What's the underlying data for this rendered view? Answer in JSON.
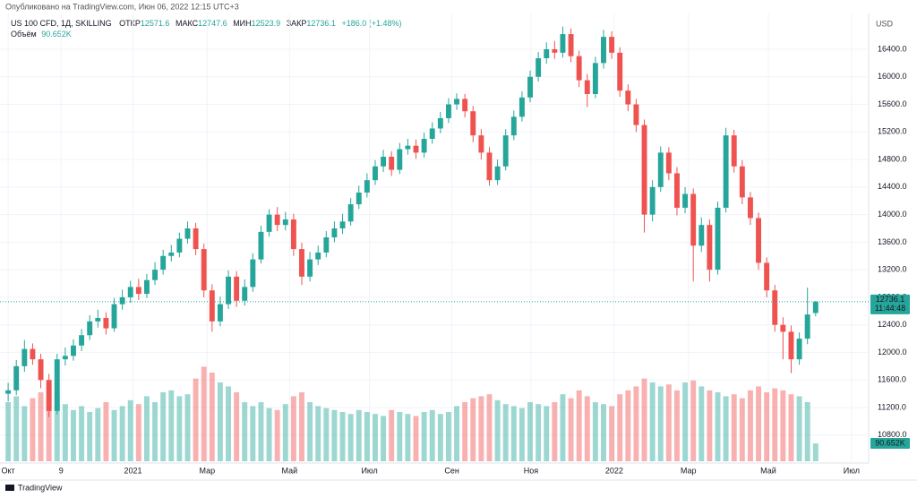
{
  "header": {
    "published": "Опубликовано на TradingView.com, Июн 06, 2022 12:15 UTC+3"
  },
  "footer": {
    "brand": "TradingView"
  },
  "chart_data": {
    "type": "candlestick",
    "title": "US 100 CFD, 1Д, SKILLING",
    "legend_labels": {
      "open": "ОТКР",
      "high": "МАКС",
      "low": "МИН",
      "close": "ЗАКР"
    },
    "change_label": "+186.0 (+1.48%)",
    "volume_name": "Объём",
    "volume_label": "90.652K",
    "timer": "11:44:48",
    "currency": "USD",
    "up_color": "#26a69a",
    "down_color": "#ef5350",
    "open": [
      11400,
      11450,
      11800,
      12050,
      11900,
      11600,
      11150,
      11900,
      11950,
      12100,
      12250,
      12450,
      12500,
      12350,
      12700,
      12800,
      12950,
      12850,
      13050,
      13200,
      13400,
      13450,
      13650,
      13800,
      13500,
      12900,
      12450,
      12700,
      13100,
      12750,
      12950,
      13350,
      13750,
      14000,
      13850,
      13930,
      13500,
      13100,
      13350,
      13450,
      13670,
      13800,
      13900,
      14150,
      14320,
      14500,
      14700,
      14840,
      14650,
      14950,
      15000,
      14900,
      15100,
      15250,
      15400,
      15600,
      15680,
      15500,
      15150,
      14900,
      14500,
      14700,
      15150,
      15420,
      15700,
      16000,
      16270,
      16400,
      16350,
      16620,
      16300,
      15950,
      15750,
      16200,
      16580,
      16350,
      15800,
      15600,
      15300,
      14000,
      14400,
      14900,
      14600,
      14100,
      14300,
      13550,
      13850,
      13200,
      14100,
      15150,
      14700,
      14250,
      13950,
      13300,
      12900,
      12400,
      12300,
      11900,
      12200,
      12571.6
    ],
    "high": [
      11560,
      11890,
      12180,
      12130,
      11980,
      11690,
      11980,
      12070,
      12190,
      12340,
      12540,
      12620,
      12580,
      12790,
      12910,
      13040,
      13070,
      13140,
      13310,
      13490,
      13560,
      13740,
      13900,
      13880,
      13580,
      12990,
      12810,
      13190,
      13180,
      13060,
      13440,
      13840,
      14080,
      14110,
      14040,
      14010,
      13590,
      13460,
      13550,
      13760,
      13900,
      14010,
      14240,
      14420,
      14600,
      14790,
      14940,
      14920,
      15040,
      15100,
      15090,
      15190,
      15340,
      15490,
      15690,
      15760,
      15750,
      15580,
      15240,
      14980,
      14800,
      15240,
      15510,
      15790,
      16090,
      16360,
      16500,
      16520,
      16730,
      16700,
      16380,
      16040,
      16290,
      16680,
      16660,
      16430,
      15890,
      15680,
      15380,
      14500,
      14990,
      14980,
      14690,
      14400,
      14380,
      13960,
      13930,
      14190,
      15260,
      15230,
      14790,
      14330,
      14030,
      13380,
      12980,
      12510,
      12390,
      12290,
      12940,
      12747.6
    ],
    "low": [
      11290,
      11380,
      11720,
      11820,
      11480,
      11060,
      11100,
      11810,
      11880,
      12020,
      12180,
      12360,
      12260,
      12300,
      12620,
      12720,
      12760,
      12790,
      12980,
      13130,
      13320,
      13380,
      13580,
      13410,
      12800,
      12300,
      12380,
      12630,
      12660,
      12680,
      12880,
      13290,
      13680,
      13760,
      13770,
      13400,
      12980,
      13030,
      13270,
      13380,
      13600,
      13720,
      13840,
      14080,
      14250,
      14430,
      14620,
      14560,
      14590,
      14870,
      14810,
      14830,
      15030,
      15180,
      15330,
      15520,
      15410,
      15050,
      14800,
      14420,
      14430,
      14640,
      15080,
      15350,
      15630,
      15930,
      16190,
      16260,
      16280,
      16210,
      15850,
      15560,
      15690,
      16120,
      16260,
      15710,
      15500,
      15200,
      13740,
      13900,
      14330,
      14500,
      13990,
      14020,
      13030,
      13460,
      13030,
      13130,
      14030,
      14610,
      14150,
      13850,
      13200,
      12800,
      12300,
      11900,
      11700,
      11820,
      12120,
      12523.9
    ],
    "close": [
      11450,
      11800,
      12050,
      11900,
      11600,
      11150,
      11900,
      11950,
      12100,
      12250,
      12450,
      12500,
      12350,
      12700,
      12800,
      12950,
      12850,
      13050,
      13200,
      13400,
      13450,
      13650,
      13800,
      13500,
      12900,
      12450,
      12700,
      13100,
      12750,
      12950,
      13350,
      13750,
      14000,
      13850,
      13930,
      13500,
      13100,
      13350,
      13450,
      13670,
      13800,
      13900,
      14150,
      14320,
      14500,
      14700,
      14840,
      14650,
      14950,
      15000,
      14900,
      15100,
      15250,
      15400,
      15600,
      15680,
      15500,
      15150,
      14900,
      14500,
      14700,
      15150,
      15420,
      15700,
      16000,
      16270,
      16400,
      16350,
      16620,
      16300,
      15950,
      15750,
      16200,
      16580,
      16350,
      15800,
      15600,
      15300,
      14000,
      14400,
      14900,
      14600,
      14100,
      14300,
      13550,
      13850,
      13200,
      14100,
      15150,
      14700,
      14250,
      13950,
      13300,
      12900,
      12400,
      12300,
      11900,
      12200,
      12550.1,
      12736.1
    ],
    "volume": [
      300,
      330,
      280,
      320,
      350,
      380,
      340,
      290,
      260,
      280,
      250,
      270,
      300,
      260,
      280,
      310,
      290,
      330,
      300,
      350,
      360,
      330,
      340,
      420,
      480,
      450,
      400,
      380,
      350,
      300,
      280,
      300,
      270,
      260,
      290,
      330,
      350,
      300,
      280,
      270,
      260,
      250,
      240,
      260,
      250,
      240,
      230,
      260,
      250,
      240,
      230,
      250,
      260,
      240,
      250,
      280,
      300,
      320,
      330,
      340,
      310,
      290,
      280,
      270,
      300,
      290,
      280,
      300,
      340,
      320,
      360,
      330,
      300,
      290,
      280,
      340,
      360,
      380,
      420,
      400,
      380,
      390,
      360,
      400,
      410,
      380,
      360,
      350,
      330,
      340,
      320,
      360,
      380,
      350,
      370,
      360,
      340,
      330,
      300,
      90.652
    ],
    "xlim": [
      -1,
      105.5
    ],
    "xticks": [
      {
        "value": 0,
        "label": "Окт"
      },
      {
        "value": 6.5,
        "label": "9"
      },
      {
        "value": 15.3,
        "label": "2021"
      },
      {
        "value": 24.4,
        "label": "Мар"
      },
      {
        "value": 34.5,
        "label": "Май"
      },
      {
        "value": 44.3,
        "label": "Июл"
      },
      {
        "value": 54.4,
        "label": "Сен"
      },
      {
        "value": 64.1,
        "label": "Ноя"
      },
      {
        "value": 74.3,
        "label": "2022"
      },
      {
        "value": 83.4,
        "label": "Мар"
      },
      {
        "value": 93.2,
        "label": "Май"
      },
      {
        "value": 103.4,
        "label": "Июл"
      }
    ],
    "ylim": [
      10420,
      16855
    ],
    "yticks": [
      {
        "value": 10800,
        "label": "10800.0"
      },
      {
        "value": 11200,
        "label": "11200.0"
      },
      {
        "value": 11600,
        "label": "11600.0"
      },
      {
        "value": 12000,
        "label": "12000.0"
      },
      {
        "value": 12400,
        "label": "12400.0"
      },
      {
        "value": 12800,
        "label": "12800.0"
      },
      {
        "value": 13200,
        "label": "13200.0"
      },
      {
        "value": 13600,
        "label": "13600.0"
      },
      {
        "value": 14000,
        "label": "14000.0"
      },
      {
        "value": 14400,
        "label": "14400.0"
      },
      {
        "value": 14800,
        "label": "14800.0"
      },
      {
        "value": 15200,
        "label": "15200.0"
      },
      {
        "value": 15600,
        "label": "15600.0"
      },
      {
        "value": 16000,
        "label": "16000.0"
      },
      {
        "value": 16400,
        "label": "16400.0"
      }
    ],
    "y2lim": [
      0,
      500
    ],
    "grid": true
  }
}
